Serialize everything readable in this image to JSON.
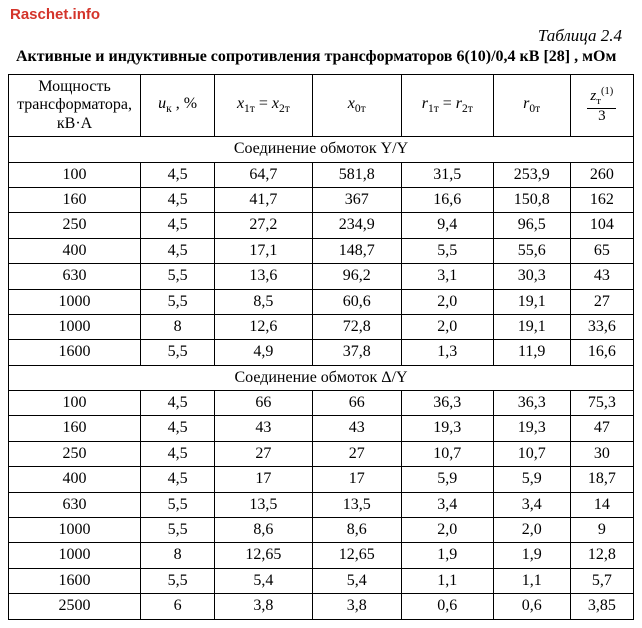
{
  "watermark": "Raschet.info",
  "table_number": "Таблица 2.4",
  "caption": "Активные и индуктивные сопротивления трансформаторов 6(10)/0,4 кВ [28] , мОм",
  "headers": {
    "c0": "Мощность трансформатора, кВ·А",
    "c1_var": "u",
    "c1_sub": "к",
    "c1_unit": " , %",
    "c2_var": "x",
    "c2_sub1": "1т",
    "c2_eq": " = ",
    "c2_sub2": "2т",
    "c3_var": "x",
    "c3_sub": "0т",
    "c4_var": "r",
    "c4_sub1": "1т",
    "c4_eq": " = ",
    "c4_sub2": "2т",
    "c5_var": "r",
    "c5_sub": "0т",
    "c6_num_var": "z",
    "c6_num_sup": "(1)",
    "c6_num_sub": "т",
    "c6_den": "3"
  },
  "section1": "Соединение обмоток Y/Y",
  "section2": "Соединение обмоток Δ/Y",
  "rows1": [
    [
      "100",
      "4,5",
      "64,7",
      "581,8",
      "31,5",
      "253,9",
      "260"
    ],
    [
      "160",
      "4,5",
      "41,7",
      "367",
      "16,6",
      "150,8",
      "162"
    ],
    [
      "250",
      "4,5",
      "27,2",
      "234,9",
      "9,4",
      "96,5",
      "104"
    ],
    [
      "400",
      "4,5",
      "17,1",
      "148,7",
      "5,5",
      "55,6",
      "65"
    ],
    [
      "630",
      "5,5",
      "13,6",
      "96,2",
      "3,1",
      "30,3",
      "43"
    ],
    [
      "1000",
      "5,5",
      "8,5",
      "60,6",
      "2,0",
      "19,1",
      "27"
    ],
    [
      "1000",
      "8",
      "12,6",
      "72,8",
      "2,0",
      "19,1",
      "33,6"
    ],
    [
      "1600",
      "5,5",
      "4,9",
      "37,8",
      "1,3",
      "11,9",
      "16,6"
    ]
  ],
  "rows2": [
    [
      "100",
      "4,5",
      "66",
      "66",
      "36,3",
      "36,3",
      "75,3"
    ],
    [
      "160",
      "4,5",
      "43",
      "43",
      "19,3",
      "19,3",
      "47"
    ],
    [
      "250",
      "4,5",
      "27",
      "27",
      "10,7",
      "10,7",
      "30"
    ],
    [
      "400",
      "4,5",
      "17",
      "17",
      "5,9",
      "5,9",
      "18,7"
    ],
    [
      "630",
      "5,5",
      "13,5",
      "13,5",
      "3,4",
      "3,4",
      "14"
    ],
    [
      "1000",
      "5,5",
      "8,6",
      "8,6",
      "2,0",
      "2,0",
      "9"
    ],
    [
      "1000",
      "8",
      "12,65",
      "12,65",
      "1,9",
      "1,9",
      "12,8"
    ],
    [
      "1600",
      "5,5",
      "5,4",
      "5,4",
      "1,1",
      "1,1",
      "5,7"
    ],
    [
      "2500",
      "6",
      "3,8",
      "3,8",
      "0,6",
      "0,6",
      "3,85"
    ]
  ]
}
